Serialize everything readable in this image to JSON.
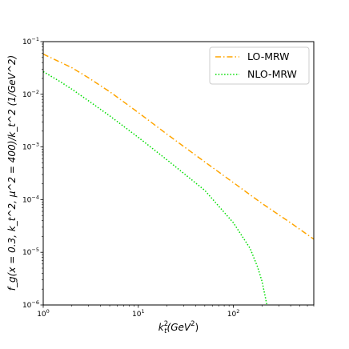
{
  "chart_data": {
    "type": "line",
    "xlabel_text": "k",
    "xlabel_sup": "2",
    "xlabel_sub": "t",
    "xlabel_tail": "(GeV",
    "xlabel_tail_sup": "2",
    "xlabel_close": ")",
    "ylabel": "f_g(x = 0.3, k_t^2, μ^2 = 400)/k_t^2 (1/GeV^2)",
    "xscale": "log",
    "yscale": "log",
    "xlim": [
      1,
      700
    ],
    "ylim": [
      1e-06,
      0.1
    ],
    "grid": false,
    "legend_position": "top-right",
    "x_tick_labels": [
      {
        "value": 1,
        "base": "10",
        "exp": "0"
      },
      {
        "value": 10,
        "base": "10",
        "exp": "1"
      },
      {
        "value": 100,
        "base": "10",
        "exp": "2"
      }
    ],
    "y_tick_labels": [
      {
        "value": 1e-06,
        "base": "10",
        "exp": "−6"
      },
      {
        "value": 1e-05,
        "base": "10",
        "exp": "−5"
      },
      {
        "value": 0.0001,
        "base": "10",
        "exp": "−4"
      },
      {
        "value": 0.001,
        "base": "10",
        "exp": "−3"
      },
      {
        "value": 0.01,
        "base": "10",
        "exp": "−2"
      },
      {
        "value": 0.1,
        "base": "10",
        "exp": "−1"
      }
    ],
    "series": [
      {
        "name": "LO-MRW",
        "color": "#ffa500",
        "style": "dashdot",
        "x": [
          1,
          1.5,
          2,
          3,
          5,
          10,
          20,
          50,
          100,
          200,
          400,
          700
        ],
        "y": [
          0.058,
          0.041,
          0.032,
          0.0205,
          0.0112,
          0.0045,
          0.00175,
          0.00052,
          0.00021,
          8.46e-05,
          3.62e-05,
          1.78e-05
        ]
      },
      {
        "name": "NLO-MRW",
        "color": "#00dd00",
        "style": "dotted",
        "x": [
          1,
          1.5,
          2,
          3,
          5,
          10,
          20,
          50,
          100,
          150,
          180,
          200,
          215,
          225
        ],
        "y": [
          0.027,
          0.0175,
          0.0125,
          0.0075,
          0.0039,
          0.00152,
          0.00057,
          0.00015,
          3.63e-05,
          1.18e-05,
          5.2e-06,
          2.8e-06,
          1.5e-06,
          1e-06
        ]
      }
    ]
  }
}
